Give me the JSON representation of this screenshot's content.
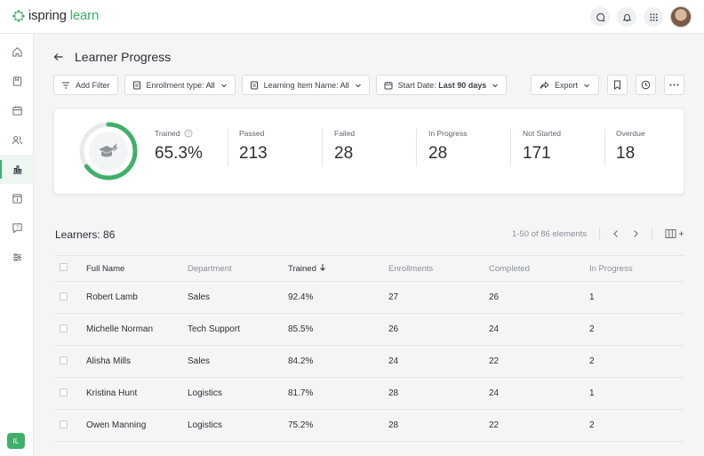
{
  "app": {
    "logo_brand": "ispring",
    "logo_product": "learn"
  },
  "sidebar": {
    "badge": "IL"
  },
  "page": {
    "title": "Learner Progress"
  },
  "filters": {
    "add_filter": "Add Filter",
    "enrollment": {
      "label": "Enrollment type:",
      "value": "All"
    },
    "item_name": {
      "label": "Learning Item Name:",
      "value": "All"
    },
    "start_date": {
      "label": "Start Date:",
      "value": "Last 90 days"
    }
  },
  "actions": {
    "export": "Export"
  },
  "stats": {
    "progress_fraction": 0.653,
    "trained": {
      "label": "Trained",
      "value": "65.3%"
    },
    "passed": {
      "label": "Passed",
      "value": "213"
    },
    "failed": {
      "label": "Failed",
      "value": "28"
    },
    "in_progress": {
      "label": "In Progress",
      "value": "28"
    },
    "not_started": {
      "label": "Not Started",
      "value": "171"
    },
    "overdue": {
      "label": "Overdue",
      "value": "18"
    }
  },
  "learners": {
    "title": "Learners: 86",
    "pagination": "1-50 of 86 elements",
    "columns": [
      "Full Name",
      "Department",
      "Trained",
      "Enrollments",
      "Completed",
      "In Progress"
    ],
    "rows": [
      [
        "Robert Lamb",
        "Sales",
        "92.4%",
        "27",
        "26",
        "1"
      ],
      [
        "Michelle Norman",
        "Tech Support",
        "85.5%",
        "26",
        "24",
        "2"
      ],
      [
        "Alisha Mills",
        "Sales",
        "84.2%",
        "24",
        "22",
        "2"
      ],
      [
        "Kristina Hunt",
        "Logistics",
        "81.7%",
        "28",
        "24",
        "1"
      ],
      [
        "Owen Manning",
        "Logistics",
        "75.2%",
        "28",
        "22",
        "2"
      ]
    ]
  },
  "colors": {
    "accent": "#3fb06a",
    "text": "#2b2f36",
    "muted": "#8a9098"
  }
}
